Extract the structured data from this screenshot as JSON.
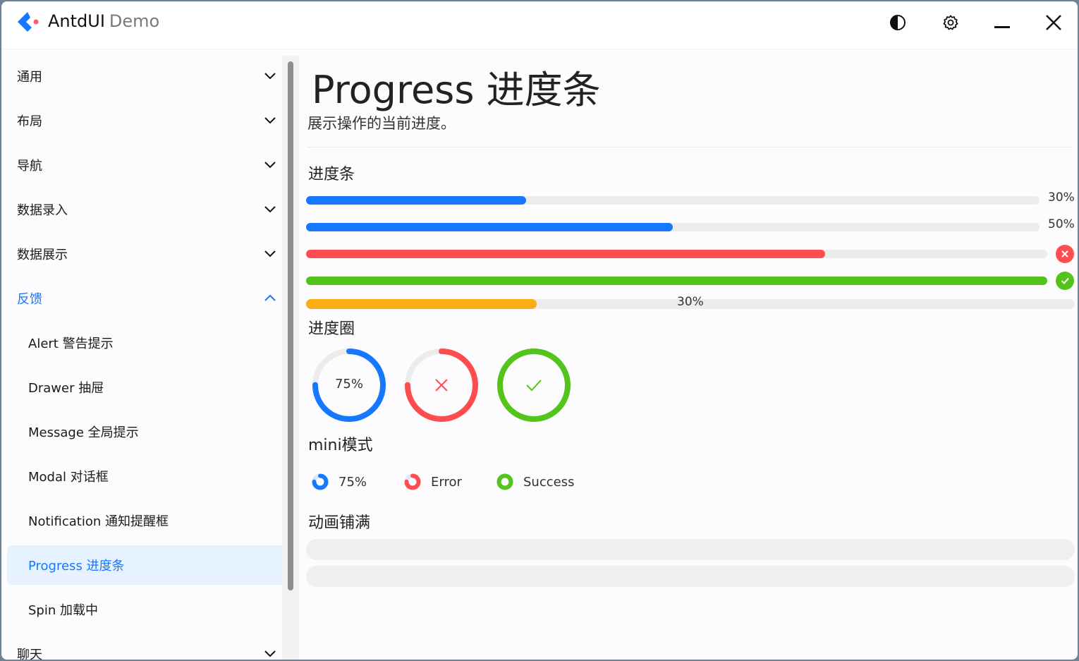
{
  "app": {
    "title": "AntdUI",
    "subtitle": "Demo"
  },
  "titlebar": {
    "icons": [
      "theme-contrast-icon",
      "settings-gear-icon",
      "minimize-icon",
      "close-icon"
    ]
  },
  "sidebar": {
    "items": [
      {
        "label": "通用",
        "type": "group",
        "expanded": false
      },
      {
        "label": "布局",
        "type": "group",
        "expanded": false
      },
      {
        "label": "导航",
        "type": "group",
        "expanded": false
      },
      {
        "label": "数据录入",
        "type": "group",
        "expanded": false
      },
      {
        "label": "数据展示",
        "type": "group",
        "expanded": false
      },
      {
        "label": "反馈",
        "type": "group",
        "expanded": true
      },
      {
        "label": "Alert 警告提示",
        "type": "sub"
      },
      {
        "label": "Drawer 抽屉",
        "type": "sub"
      },
      {
        "label": "Message 全局提示",
        "type": "sub"
      },
      {
        "label": "Modal 对话框",
        "type": "sub"
      },
      {
        "label": "Notification 通知提醒框",
        "type": "sub"
      },
      {
        "label": "Progress 进度条",
        "type": "sub",
        "active": true
      },
      {
        "label": "Spin 加载中",
        "type": "sub"
      },
      {
        "label": "聊天",
        "type": "group",
        "expanded": false
      }
    ]
  },
  "main": {
    "title": "Progress 进度条",
    "description": "展示操作的当前进度。",
    "section_bar": "进度条",
    "bars": [
      {
        "value": 0.3,
        "label": "30%",
        "status": "normal",
        "color": "#1677ff"
      },
      {
        "value": 0.5,
        "label": "50%",
        "status": "normal",
        "color": "#1677ff"
      },
      {
        "value": 0.7,
        "status": "error",
        "color": "#ff4d4f"
      },
      {
        "value": 1.0,
        "status": "success",
        "color": "#52c41a"
      },
      {
        "value": 0.3,
        "label": "30%",
        "status": "warning",
        "color": "#faad14"
      }
    ],
    "section_circle": "进度圈",
    "circles": [
      {
        "value": 0.75,
        "label": "75%",
        "status": "normal",
        "color": "#1677ff"
      },
      {
        "value": 0.75,
        "status": "error",
        "color": "#ff4d4f"
      },
      {
        "value": 1.0,
        "status": "success",
        "color": "#52c41a"
      }
    ],
    "section_mini": "mini模式",
    "minis": [
      {
        "value": 0.75,
        "label": "75%",
        "color": "#1677ff"
      },
      {
        "value": 0.75,
        "label": "Error",
        "color": "#ff4d4f"
      },
      {
        "value": 1.0,
        "label": "Success",
        "color": "#52c41a"
      }
    ],
    "section_anim": "动画铺满"
  }
}
